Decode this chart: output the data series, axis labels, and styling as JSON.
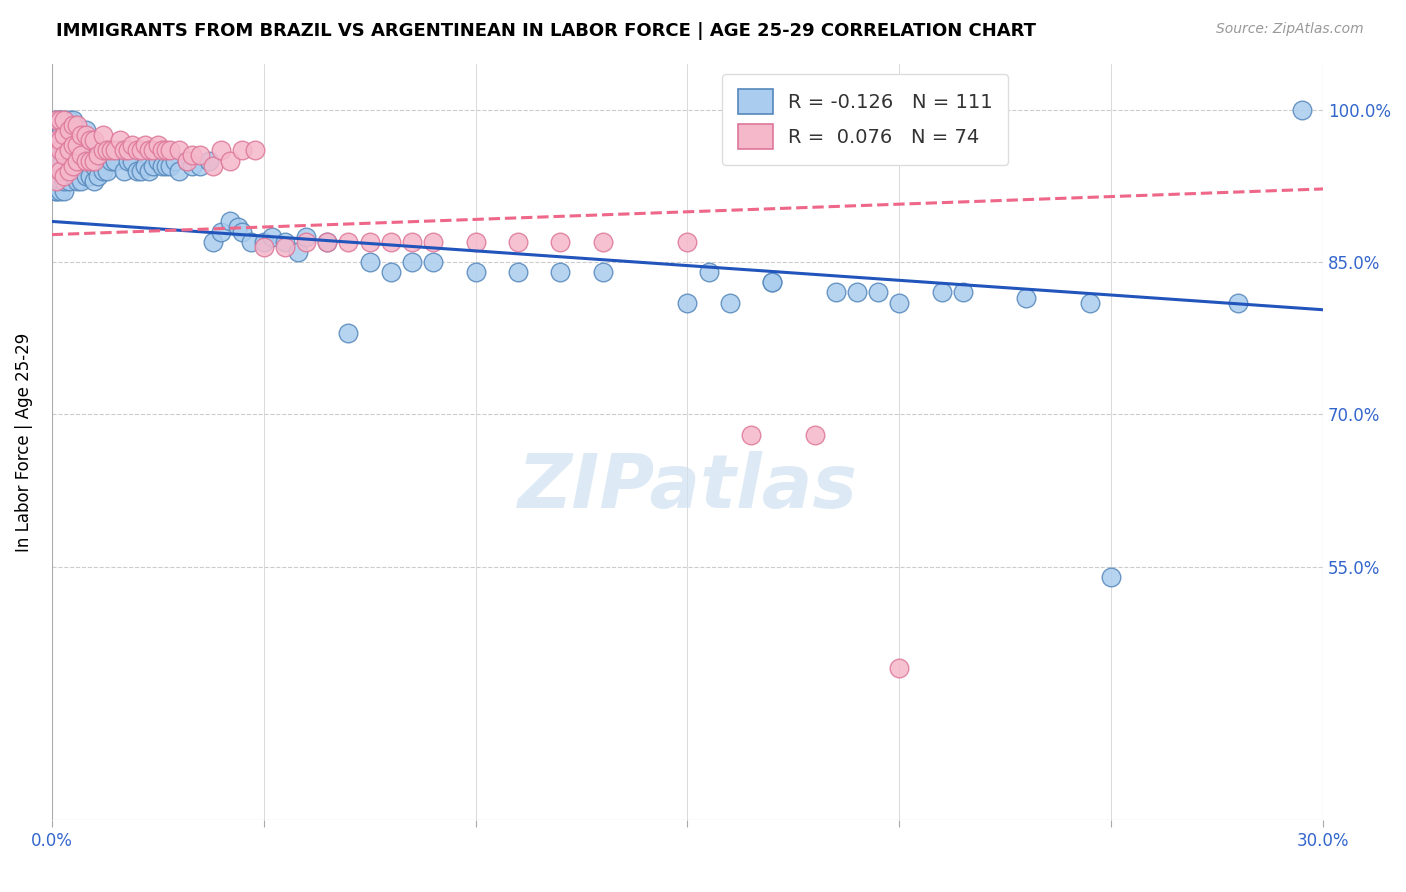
{
  "title": "IMMIGRANTS FROM BRAZIL VS ARGENTINEAN IN LABOR FORCE | AGE 25-29 CORRELATION CHART",
  "source": "Source: ZipAtlas.com",
  "ylabel": "In Labor Force | Age 25-29",
  "xlim": [
    0.0,
    0.3
  ],
  "ylim": [
    0.3,
    1.045
  ],
  "xtick_positions": [
    0.0,
    0.05,
    0.1,
    0.15,
    0.2,
    0.25,
    0.3
  ],
  "xticklabels": [
    "0.0%",
    "",
    "",
    "",
    "",
    "",
    "30.0%"
  ],
  "ytick_positions": [
    0.55,
    0.7,
    0.85,
    1.0
  ],
  "ytick_labels": [
    "55.0%",
    "70.0%",
    "85.0%",
    "100.0%"
  ],
  "legend_text1": "R = -0.126   N = 111",
  "legend_text2": "R =  0.076   N = 74",
  "brazil_color": "#aaccee",
  "brazil_edge": "#5588bb",
  "argentina_color": "#f5b8cb",
  "argentina_edge": "#dd7799",
  "trend_blue": "#2255bb",
  "trend_pink": "#ee6688",
  "watermark": "ZIPatlas",
  "brazil_x": [
    0.001,
    0.001,
    0.001,
    0.001,
    0.001,
    0.001,
    0.002,
    0.002,
    0.002,
    0.002,
    0.002,
    0.002,
    0.002,
    0.003,
    0.003,
    0.003,
    0.003,
    0.003,
    0.003,
    0.003,
    0.004,
    0.004,
    0.004,
    0.004,
    0.004,
    0.005,
    0.005,
    0.005,
    0.005,
    0.005,
    0.006,
    0.006,
    0.006,
    0.006,
    0.007,
    0.007,
    0.007,
    0.007,
    0.008,
    0.008,
    0.008,
    0.008,
    0.009,
    0.009,
    0.01,
    0.01,
    0.01,
    0.011,
    0.011,
    0.012,
    0.013,
    0.013,
    0.014,
    0.015,
    0.016,
    0.017,
    0.017,
    0.018,
    0.019,
    0.02,
    0.021,
    0.022,
    0.023,
    0.024,
    0.025,
    0.026,
    0.027,
    0.028,
    0.029,
    0.03,
    0.032,
    0.033,
    0.035,
    0.037,
    0.038,
    0.04,
    0.042,
    0.044,
    0.045,
    0.047,
    0.05,
    0.052,
    0.055,
    0.058,
    0.06,
    0.065,
    0.07,
    0.075,
    0.08,
    0.085,
    0.09,
    0.1,
    0.11,
    0.12,
    0.13,
    0.15,
    0.16,
    0.17,
    0.19,
    0.21,
    0.25,
    0.28,
    0.295,
    0.155,
    0.17,
    0.185,
    0.195,
    0.2,
    0.215,
    0.23,
    0.245
  ],
  "brazil_y": [
    0.92,
    0.92,
    0.94,
    0.96,
    0.99,
    0.99,
    0.92,
    0.93,
    0.945,
    0.96,
    0.975,
    0.99,
    0.99,
    0.92,
    0.93,
    0.945,
    0.96,
    0.97,
    0.985,
    0.99,
    0.93,
    0.945,
    0.96,
    0.975,
    0.99,
    0.935,
    0.95,
    0.965,
    0.975,
    0.99,
    0.93,
    0.945,
    0.965,
    0.98,
    0.93,
    0.945,
    0.96,
    0.975,
    0.935,
    0.95,
    0.965,
    0.98,
    0.935,
    0.95,
    0.93,
    0.945,
    0.96,
    0.935,
    0.95,
    0.94,
    0.94,
    0.96,
    0.95,
    0.95,
    0.96,
    0.94,
    0.96,
    0.95,
    0.95,
    0.94,
    0.94,
    0.945,
    0.94,
    0.945,
    0.95,
    0.945,
    0.945,
    0.945,
    0.95,
    0.94,
    0.95,
    0.945,
    0.945,
    0.95,
    0.87,
    0.88,
    0.89,
    0.885,
    0.88,
    0.87,
    0.87,
    0.875,
    0.87,
    0.86,
    0.875,
    0.87,
    0.78,
    0.85,
    0.84,
    0.85,
    0.85,
    0.84,
    0.84,
    0.84,
    0.84,
    0.81,
    0.81,
    0.83,
    0.82,
    0.82,
    0.54,
    0.81,
    1.0,
    0.84,
    0.83,
    0.82,
    0.82,
    0.81,
    0.82,
    0.815,
    0.81
  ],
  "argentina_x": [
    0.001,
    0.001,
    0.001,
    0.001,
    0.002,
    0.002,
    0.002,
    0.002,
    0.003,
    0.003,
    0.003,
    0.003,
    0.004,
    0.004,
    0.004,
    0.005,
    0.005,
    0.005,
    0.006,
    0.006,
    0.006,
    0.007,
    0.007,
    0.008,
    0.008,
    0.009,
    0.009,
    0.01,
    0.01,
    0.011,
    0.012,
    0.012,
    0.013,
    0.014,
    0.015,
    0.016,
    0.017,
    0.018,
    0.019,
    0.02,
    0.021,
    0.022,
    0.023,
    0.024,
    0.025,
    0.026,
    0.027,
    0.028,
    0.03,
    0.032,
    0.033,
    0.035,
    0.038,
    0.04,
    0.042,
    0.045,
    0.048,
    0.05,
    0.055,
    0.06,
    0.065,
    0.07,
    0.075,
    0.08,
    0.085,
    0.09,
    0.1,
    0.11,
    0.12,
    0.13,
    0.15,
    0.165,
    0.18,
    0.2
  ],
  "argentina_y": [
    0.93,
    0.95,
    0.97,
    0.99,
    0.94,
    0.96,
    0.97,
    0.99,
    0.935,
    0.955,
    0.975,
    0.99,
    0.94,
    0.96,
    0.98,
    0.945,
    0.965,
    0.985,
    0.95,
    0.965,
    0.985,
    0.955,
    0.975,
    0.95,
    0.975,
    0.95,
    0.97,
    0.95,
    0.97,
    0.955,
    0.96,
    0.975,
    0.96,
    0.96,
    0.96,
    0.97,
    0.96,
    0.96,
    0.965,
    0.96,
    0.96,
    0.965,
    0.96,
    0.96,
    0.965,
    0.96,
    0.96,
    0.96,
    0.96,
    0.95,
    0.955,
    0.955,
    0.945,
    0.96,
    0.95,
    0.96,
    0.96,
    0.865,
    0.865,
    0.87,
    0.87,
    0.87,
    0.87,
    0.87,
    0.87,
    0.87,
    0.87,
    0.87,
    0.87,
    0.87,
    0.87,
    0.68,
    0.68,
    0.45
  ]
}
